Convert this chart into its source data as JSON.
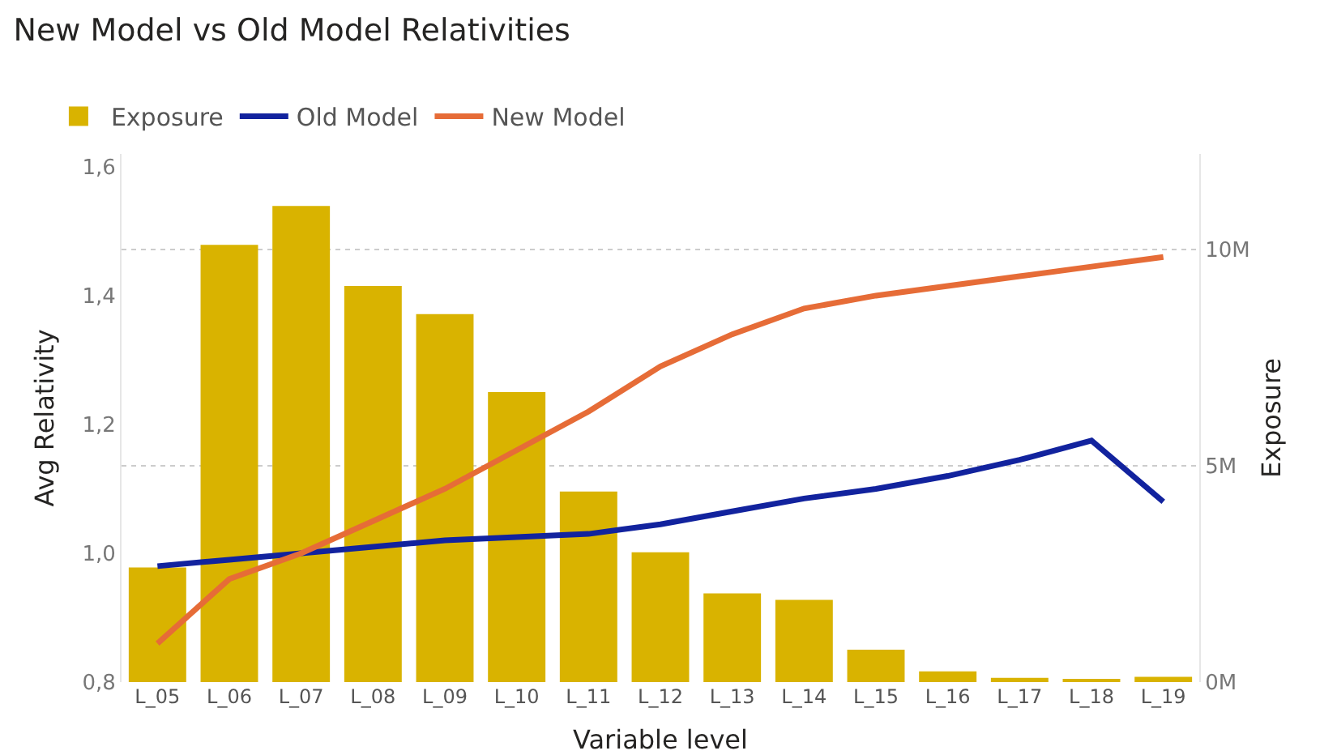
{
  "chart_data": {
    "type": "bar",
    "title": "New Model vs Old Model Relativities",
    "xlabel": "Variable level",
    "ylabel": "Avg Relativity",
    "y2label": "Exposure",
    "categories": [
      "L_05",
      "L_06",
      "L_07",
      "L_08",
      "L_09",
      "L_10",
      "L_11",
      "L_12",
      "L_13",
      "L_14",
      "L_15",
      "L_16",
      "L_17",
      "L_18",
      "L_19"
    ],
    "series": [
      {
        "name": "Exposure",
        "axis": "y2",
        "color": "#d9b300",
        "values": [
          2650000,
          10100000,
          11000000,
          9150000,
          8500000,
          6700000,
          4400000,
          3000000,
          2050000,
          1900000,
          750000,
          250000,
          100000,
          50000,
          120000
        ]
      },
      {
        "name": "Old Model",
        "type": "line",
        "axis": "y",
        "color": "#12239e",
        "values": [
          0.98,
          0.99,
          1.0,
          1.01,
          1.02,
          1.025,
          1.03,
          1.045,
          1.065,
          1.085,
          1.1,
          1.12,
          1.145,
          1.175,
          1.08
        ]
      },
      {
        "name": "New Model",
        "type": "line",
        "axis": "y",
        "color": "#e66c37",
        "values": [
          0.86,
          0.96,
          1.0,
          1.05,
          1.1,
          1.16,
          1.22,
          1.29,
          1.34,
          1.38,
          1.4,
          1.415,
          1.43,
          1.445,
          1.46
        ]
      }
    ],
    "ylim": [
      0.8,
      1.62
    ],
    "yticks": [
      {
        "value": 0.8,
        "label": "0,8"
      },
      {
        "value": 1.0,
        "label": "1,0"
      },
      {
        "value": 1.2,
        "label": "1,2"
      },
      {
        "value": 1.4,
        "label": "1,4"
      },
      {
        "value": 1.6,
        "label": "1,6"
      }
    ],
    "y2lim": [
      0,
      12200000
    ],
    "y2ticks": [
      {
        "value": 0,
        "label": "0M"
      },
      {
        "value": 5000000,
        "label": "5M"
      },
      {
        "value": 10000000,
        "label": "10M"
      }
    ],
    "grid": true,
    "legend": "top left",
    "marker": "none",
    "line_style": "solid"
  }
}
